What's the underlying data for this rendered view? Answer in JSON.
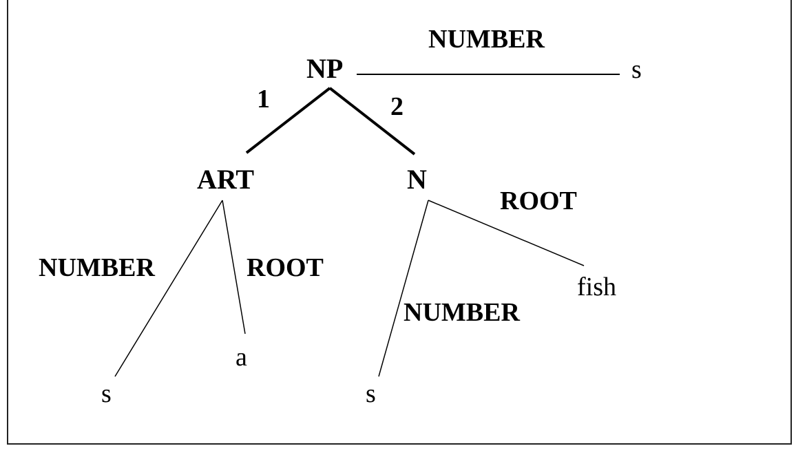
{
  "nodes": {
    "np": "NP",
    "art": "ART",
    "n": "N"
  },
  "edge_labels": {
    "np_number": "NUMBER",
    "np_child1": "1",
    "np_child2": "2",
    "art_number": "NUMBER",
    "art_root": "ROOT",
    "n_root": "ROOT",
    "n_number": "NUMBER"
  },
  "leaves": {
    "np_number_value": "s",
    "art_number_value": "s",
    "art_root_value": "a",
    "n_number_value": "s",
    "n_root_value": "fish"
  }
}
